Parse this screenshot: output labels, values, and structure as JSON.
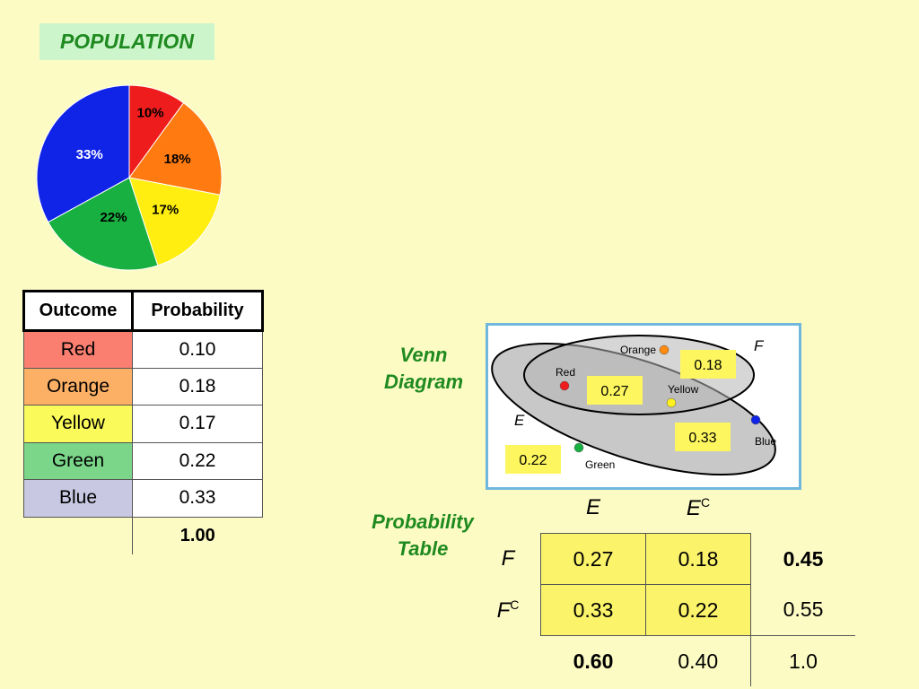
{
  "population_title": "POPULATION",
  "chart_data": {
    "type": "pie",
    "slices": [
      {
        "label": "10%",
        "value": 10,
        "color": "#ee1c1c"
      },
      {
        "label": "18%",
        "value": 18,
        "color": "#ff7a10"
      },
      {
        "label": "17%",
        "value": 17,
        "color": "#ffee10"
      },
      {
        "label": "22%",
        "value": 22,
        "color": "#18b040"
      },
      {
        "label": "33%",
        "value": 33,
        "color": "#1024e8"
      }
    ]
  },
  "outcome_table": {
    "headers": [
      "Outcome",
      "Probability"
    ],
    "rows": [
      {
        "outcome": "Red",
        "probability": "0.10",
        "color": "#fa7f70"
      },
      {
        "outcome": "Orange",
        "probability": "0.18",
        "color": "#fcb066"
      },
      {
        "outcome": "Yellow",
        "probability": "0.17",
        "color": "#fafa5a"
      },
      {
        "outcome": "Green",
        "probability": "0.22",
        "color": "#7bd68a"
      },
      {
        "outcome": "Blue",
        "probability": "0.33",
        "color": "#c8c8e2"
      }
    ],
    "total": "1.00"
  },
  "venn_label": [
    "Venn",
    "Diagram"
  ],
  "venn": {
    "set_e": "E",
    "set_f": "F",
    "points": {
      "orange": "Orange",
      "red": "Red",
      "yellow": "Yellow",
      "blue": "Blue",
      "green": "Green"
    },
    "values": {
      "f_only": "0.18",
      "both": "0.27",
      "e_only": "0.33",
      "neither": "0.22"
    }
  },
  "prob_table_label": [
    "Probability",
    "Table"
  ],
  "prob_table": {
    "col_e": "E",
    "col_ec": "E",
    "row_f": "F",
    "row_fc": "F",
    "sup_c": "C",
    "f_e": "0.27",
    "f_ec": "0.18",
    "f_total": "0.45",
    "fc_e": "0.33",
    "fc_ec": "0.22",
    "fc_total": "0.55",
    "e_total": "0.60",
    "ec_total": "0.40",
    "grand_total": "1.0"
  }
}
